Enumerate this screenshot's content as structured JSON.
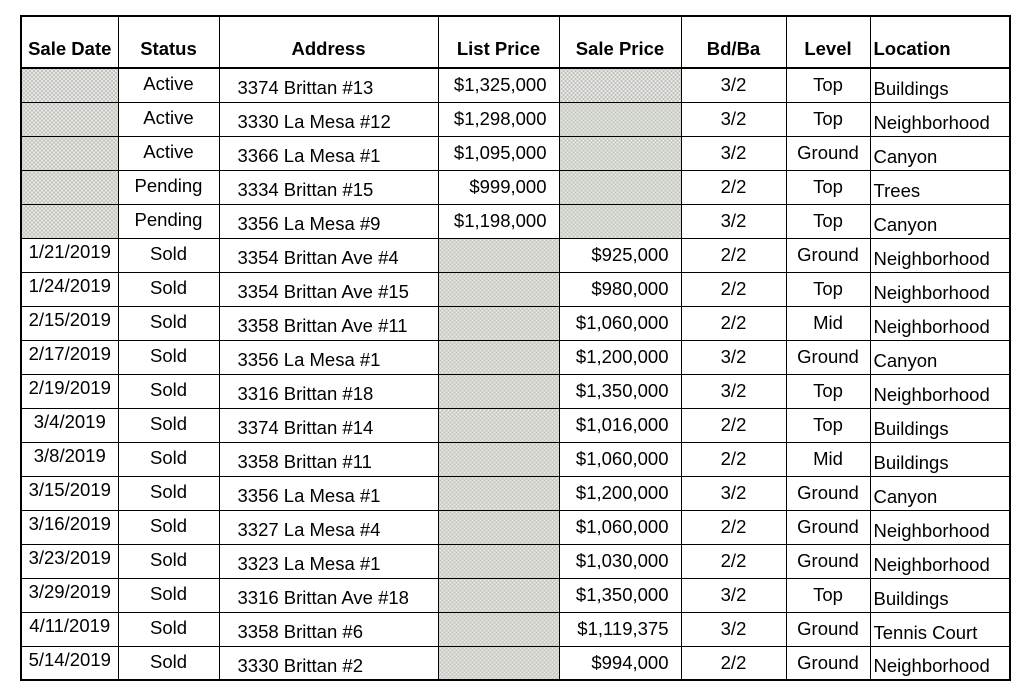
{
  "table": {
    "colors": {
      "grid": "#000000",
      "text": "#000000",
      "background": "#ffffff",
      "shaded_cell": "#c3c3c3"
    },
    "columns": [
      {
        "key": "sale_date",
        "label": "Sale Date"
      },
      {
        "key": "status",
        "label": "Status"
      },
      {
        "key": "address",
        "label": "Address"
      },
      {
        "key": "list_price",
        "label": "List Price"
      },
      {
        "key": "sale_price",
        "label": "Sale Price"
      },
      {
        "key": "bd_ba",
        "label": "Bd/Ba"
      },
      {
        "key": "level",
        "label": "Level"
      },
      {
        "key": "location",
        "label": "Location"
      }
    ],
    "rows": [
      {
        "sale_date": null,
        "status": "Active",
        "address": "3374 Brittan #13",
        "list_price": "$1,325,000",
        "sale_price": null,
        "bd_ba": "3/2",
        "level": "Top",
        "location": "Buildings"
      },
      {
        "sale_date": null,
        "status": "Active",
        "address": "3330 La Mesa #12",
        "list_price": "$1,298,000",
        "sale_price": null,
        "bd_ba": "3/2",
        "level": "Top",
        "location": "Neighborhood"
      },
      {
        "sale_date": null,
        "status": "Active",
        "address": "3366 La Mesa #1",
        "list_price": "$1,095,000",
        "sale_price": null,
        "bd_ba": "3/2",
        "level": "Ground",
        "location": "Canyon"
      },
      {
        "sale_date": null,
        "status": "Pending",
        "address": "3334 Brittan #15",
        "list_price": "$999,000",
        "sale_price": null,
        "bd_ba": "2/2",
        "level": "Top",
        "location": "Trees"
      },
      {
        "sale_date": null,
        "status": "Pending",
        "address": "3356 La Mesa #9",
        "list_price": "$1,198,000",
        "sale_price": null,
        "bd_ba": "3/2",
        "level": "Top",
        "location": "Canyon"
      },
      {
        "sale_date": "1/21/2019",
        "status": "Sold",
        "address": "3354 Brittan Ave #4",
        "list_price": null,
        "sale_price": "$925,000",
        "bd_ba": "2/2",
        "level": "Ground",
        "location": "Neighborhood"
      },
      {
        "sale_date": "1/24/2019",
        "status": "Sold",
        "address": "3354 Brittan Ave #15",
        "list_price": null,
        "sale_price": "$980,000",
        "bd_ba": "2/2",
        "level": "Top",
        "location": "Neighborhood"
      },
      {
        "sale_date": "2/15/2019",
        "status": "Sold",
        "address": "3358 Brittan Ave #11",
        "list_price": null,
        "sale_price": "$1,060,000",
        "bd_ba": "2/2",
        "level": "Mid",
        "location": "Neighborhood"
      },
      {
        "sale_date": "2/17/2019",
        "status": "Sold",
        "address": "3356 La Mesa #1",
        "list_price": null,
        "sale_price": "$1,200,000",
        "bd_ba": "3/2",
        "level": "Ground",
        "location": "Canyon"
      },
      {
        "sale_date": "2/19/2019",
        "status": "Sold",
        "address": "3316 Brittan #18",
        "list_price": null,
        "sale_price": "$1,350,000",
        "bd_ba": "3/2",
        "level": "Top",
        "location": "Neighborhood"
      },
      {
        "sale_date": "3/4/2019",
        "status": "Sold",
        "address": "3374 Brittan #14",
        "list_price": null,
        "sale_price": "$1,016,000",
        "bd_ba": "2/2",
        "level": "Top",
        "location": "Buildings"
      },
      {
        "sale_date": "3/8/2019",
        "status": "Sold",
        "address": "3358 Brittan #11",
        "list_price": null,
        "sale_price": "$1,060,000",
        "bd_ba": "2/2",
        "level": "Mid",
        "location": "Buildings"
      },
      {
        "sale_date": "3/15/2019",
        "status": "Sold",
        "address": "3356 La Mesa #1",
        "list_price": null,
        "sale_price": "$1,200,000",
        "bd_ba": "3/2",
        "level": "Ground",
        "location": "Canyon"
      },
      {
        "sale_date": "3/16/2019",
        "status": "Sold",
        "address": "3327 La Mesa #4",
        "list_price": null,
        "sale_price": "$1,060,000",
        "bd_ba": "2/2",
        "level": "Ground",
        "location": "Neighborhood"
      },
      {
        "sale_date": "3/23/2019",
        "status": "Sold",
        "address": "3323 La Mesa #1",
        "list_price": null,
        "sale_price": "$1,030,000",
        "bd_ba": "2/2",
        "level": "Ground",
        "location": "Neighborhood"
      },
      {
        "sale_date": "3/29/2019",
        "status": "Sold",
        "address": "3316 Brittan Ave #18",
        "list_price": null,
        "sale_price": "$1,350,000",
        "bd_ba": "3/2",
        "level": "Top",
        "location": "Buildings"
      },
      {
        "sale_date": "4/11/2019",
        "status": "Sold",
        "address": "3358 Brittan #6",
        "list_price": null,
        "sale_price": "$1,119,375",
        "bd_ba": "3/2",
        "level": "Ground",
        "location": "Tennis Court"
      },
      {
        "sale_date": "5/14/2019",
        "status": "Sold",
        "address": "3330 Brittan #2",
        "list_price": null,
        "sale_price": "$994,000",
        "bd_ba": "2/2",
        "level": "Ground",
        "location": "Neighborhood"
      }
    ]
  }
}
